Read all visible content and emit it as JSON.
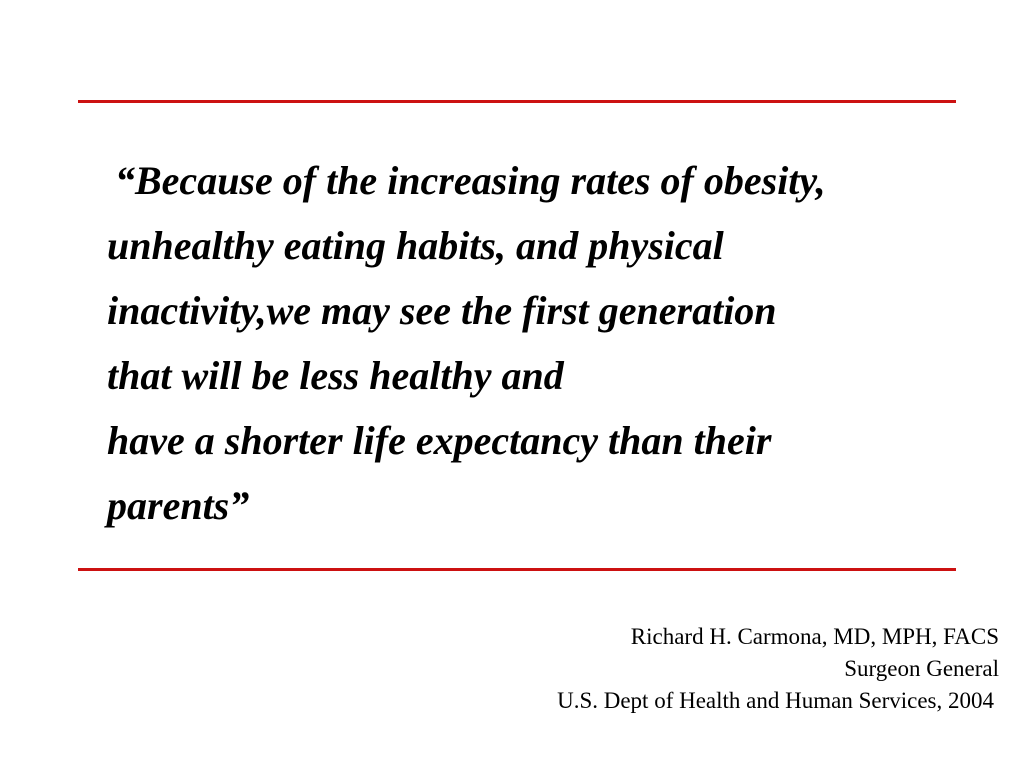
{
  "colors": {
    "rule": "#cc1111",
    "text": "#000000",
    "background": "#ffffff"
  },
  "quote": {
    "lines": [
      "“Because of the increasing rates of obesity,",
      "unhealthy eating habits, and physical",
      "inactivity,we may see the first generation",
      "that will be less healthy and",
      "have a shorter life expectancy than their",
      "parents”"
    ]
  },
  "attribution": {
    "name": "Richard H. Carmona, MD, MPH, FACS",
    "title": "Surgeon General",
    "organization": "U.S. Dept of Health and Human Services, 2004"
  }
}
